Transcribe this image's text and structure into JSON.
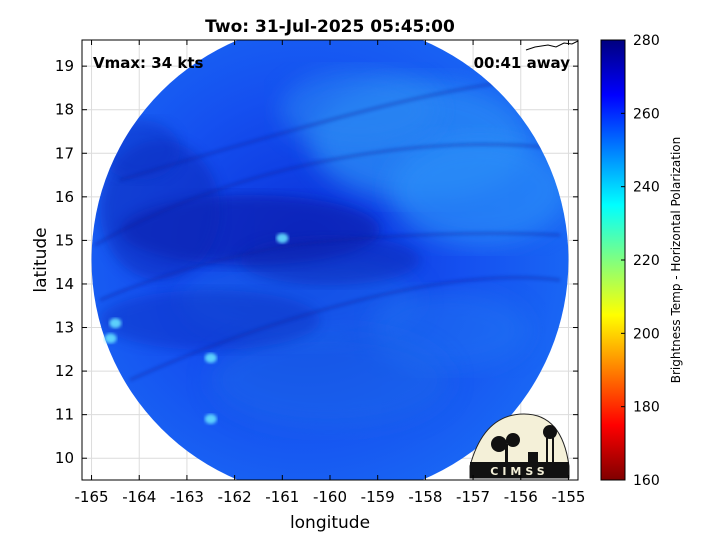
{
  "title": "Two: 31-Jul-2025 05:45:00",
  "annotations": {
    "vmax": "Vmax: 34 kts",
    "time_away": "00:41 away"
  },
  "axes": {
    "xlabel": "longitude",
    "ylabel": "latitude",
    "xlim": [
      -165.2,
      -154.8
    ],
    "ylim": [
      9.5,
      19.6
    ],
    "xticks": [
      -165,
      -164,
      -163,
      -162,
      -161,
      -160,
      -159,
      -158,
      -157,
      -156,
      -155
    ],
    "yticks": [
      10,
      11,
      12,
      13,
      14,
      15,
      16,
      17,
      18,
      19
    ],
    "grid": true
  },
  "colorbar": {
    "label": "Brightness Temp - Horizontal Polarization",
    "range": [
      160,
      280
    ],
    "ticks": [
      160,
      180,
      200,
      220,
      240,
      260,
      280
    ],
    "colormap": "jet",
    "colors": [
      "#7f0000",
      "#ff0000",
      "#ff8000",
      "#ffff00",
      "#80ff80",
      "#00ffff",
      "#0080ff",
      "#0000ff",
      "#00007f"
    ]
  },
  "swath": {
    "center_lon": -160.0,
    "center_lat": 14.55,
    "radius_deg": 5.0,
    "typical_value": "250-265 K"
  },
  "warm_spots": [
    {
      "lon": -161.0,
      "lat": 15.05
    },
    {
      "lon": -164.6,
      "lat": 12.75
    },
    {
      "lon": -164.5,
      "lat": 13.1
    },
    {
      "lon": -162.5,
      "lat": 12.3
    },
    {
      "lon": -162.5,
      "lat": 10.9
    }
  ],
  "logo": {
    "text": "CIMSS"
  }
}
